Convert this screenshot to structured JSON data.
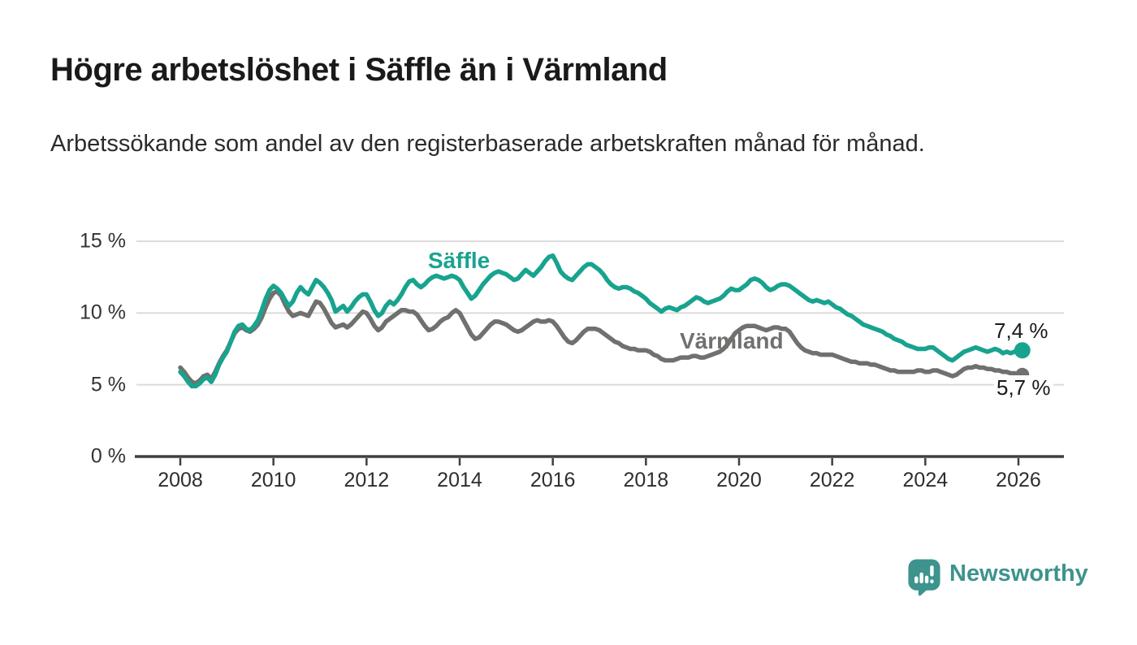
{
  "header": {
    "title": "Högre arbetslöshet i Säffle än i Värmland",
    "subtitle": "Arbetssökande som andel av den registerbaserade arbetskraften månad för månad."
  },
  "chart_data": {
    "type": "line",
    "title": "Högre arbetslöshet i Säffle än i Värmland",
    "subtitle": "Arbetssökande som andel av den registerbaserade arbetskraften månad för månad.",
    "x_unit": "month",
    "x_start": "2008-01",
    "x_end": "2026-02",
    "xlim": [
      2007,
      2027
    ],
    "ylim": [
      0,
      15.5
    ],
    "grid": "horizontal",
    "legend_position": "inline-labels",
    "x_ticks": [
      "2008",
      "2010",
      "2012",
      "2014",
      "2016",
      "2018",
      "2020",
      "2022",
      "2024",
      "2026"
    ],
    "y_ticks": [
      {
        "value": 0,
        "label": "0 %"
      },
      {
        "value": 5,
        "label": "5 %"
      },
      {
        "value": 10,
        "label": "10 %"
      },
      {
        "value": 15,
        "label": "15 %"
      }
    ],
    "series": [
      {
        "name": "Värmland",
        "color": "#70706F",
        "end_label": "5,7 %",
        "end_value": 5.7,
        "values": [
          6.2,
          5.9,
          5.5,
          5.2,
          5.1,
          5.3,
          5.6,
          5.7,
          5.4,
          5.9,
          6.5,
          7.0,
          7.4,
          8.0,
          8.6,
          8.9,
          9.0,
          8.8,
          8.7,
          8.9,
          9.2,
          9.7,
          10.4,
          11.0,
          11.4,
          11.5,
          11.2,
          10.6,
          10.1,
          9.8,
          9.9,
          10.0,
          9.9,
          9.8,
          10.3,
          10.8,
          10.7,
          10.3,
          9.8,
          9.3,
          9.0,
          9.1,
          9.2,
          9.0,
          9.2,
          9.5,
          9.8,
          10.1,
          10.0,
          9.6,
          9.1,
          8.8,
          9.0,
          9.4,
          9.6,
          9.8,
          10.0,
          10.2,
          10.2,
          10.1,
          10.1,
          9.9,
          9.5,
          9.1,
          8.8,
          8.9,
          9.1,
          9.4,
          9.6,
          9.7,
          10.0,
          10.2,
          10.0,
          9.5,
          9.0,
          8.5,
          8.2,
          8.3,
          8.6,
          8.9,
          9.2,
          9.4,
          9.4,
          9.3,
          9.2,
          9.0,
          8.8,
          8.7,
          8.8,
          9.0,
          9.2,
          9.4,
          9.5,
          9.4,
          9.4,
          9.5,
          9.4,
          9.1,
          8.7,
          8.3,
          8.0,
          7.9,
          8.1,
          8.4,
          8.7,
          8.9,
          8.9,
          8.9,
          8.8,
          8.6,
          8.4,
          8.2,
          8.0,
          7.9,
          7.7,
          7.6,
          7.5,
          7.5,
          7.4,
          7.4,
          7.4,
          7.3,
          7.1,
          7.0,
          6.8,
          6.7,
          6.7,
          6.7,
          6.8,
          6.9,
          6.9,
          6.9,
          7.0,
          7.0,
          6.9,
          6.9,
          7.0,
          7.1,
          7.2,
          7.3,
          7.5,
          7.8,
          8.2,
          8.6,
          8.8,
          9.0,
          9.1,
          9.1,
          9.1,
          9.0,
          8.9,
          8.8,
          8.9,
          9.0,
          9.0,
          8.9,
          8.9,
          8.7,
          8.3,
          7.9,
          7.6,
          7.4,
          7.3,
          7.2,
          7.2,
          7.1,
          7.1,
          7.1,
          7.1,
          7.0,
          6.9,
          6.8,
          6.7,
          6.6,
          6.6,
          6.5,
          6.5,
          6.5,
          6.4,
          6.4,
          6.3,
          6.2,
          6.1,
          6.0,
          6.0,
          5.9,
          5.9,
          5.9,
          5.9,
          5.9,
          6.0,
          6.0,
          5.9,
          5.9,
          6.0,
          6.0,
          5.9,
          5.8,
          5.7,
          5.6,
          5.7,
          5.9,
          6.1,
          6.2,
          6.2,
          6.3,
          6.2,
          6.2,
          6.1,
          6.1,
          6.0,
          6.0,
          5.9,
          5.9,
          5.8,
          5.8,
          5.7,
          5.7
        ]
      },
      {
        "name": "Säffle",
        "color": "#18A38F",
        "end_label": "7,4 %",
        "end_value": 7.4,
        "values": [
          5.9,
          5.6,
          5.2,
          4.9,
          4.9,
          5.1,
          5.4,
          5.5,
          5.2,
          5.7,
          6.4,
          6.9,
          7.3,
          8.0,
          8.7,
          9.1,
          9.2,
          8.9,
          8.8,
          9.1,
          9.5,
          10.2,
          11.0,
          11.6,
          11.9,
          11.7,
          11.4,
          10.9,
          10.5,
          10.8,
          11.4,
          11.8,
          11.5,
          11.3,
          11.8,
          12.3,
          12.1,
          11.8,
          11.4,
          10.9,
          10.1,
          10.3,
          10.5,
          10.1,
          10.4,
          10.8,
          11.1,
          11.3,
          11.3,
          10.8,
          10.2,
          9.8,
          10.0,
          10.5,
          10.8,
          10.6,
          10.9,
          11.3,
          11.8,
          12.2,
          12.3,
          12.0,
          11.8,
          12.0,
          12.3,
          12.5,
          12.6,
          12.5,
          12.4,
          12.5,
          12.6,
          12.5,
          12.3,
          11.8,
          11.4,
          11.0,
          11.2,
          11.6,
          12.0,
          12.3,
          12.6,
          12.8,
          12.9,
          12.8,
          12.7,
          12.5,
          12.3,
          12.4,
          12.7,
          13.0,
          12.8,
          12.6,
          12.9,
          13.2,
          13.6,
          13.9,
          14.0,
          13.5,
          12.9,
          12.6,
          12.4,
          12.3,
          12.6,
          12.9,
          13.2,
          13.4,
          13.4,
          13.2,
          13.0,
          12.7,
          12.3,
          12.0,
          11.8,
          11.7,
          11.8,
          11.8,
          11.7,
          11.5,
          11.4,
          11.2,
          11.0,
          10.7,
          10.5,
          10.3,
          10.1,
          10.3,
          10.4,
          10.3,
          10.2,
          10.4,
          10.5,
          10.7,
          10.9,
          11.1,
          11.0,
          10.8,
          10.7,
          10.8,
          10.9,
          11.0,
          11.2,
          11.5,
          11.7,
          11.6,
          11.6,
          11.8,
          12.0,
          12.3,
          12.4,
          12.3,
          12.1,
          11.8,
          11.6,
          11.7,
          11.9,
          12.0,
          12.0,
          11.9,
          11.7,
          11.5,
          11.3,
          11.1,
          10.9,
          10.8,
          10.9,
          10.8,
          10.7,
          10.8,
          10.6,
          10.4,
          10.3,
          10.1,
          9.9,
          9.8,
          9.6,
          9.4,
          9.2,
          9.1,
          9.0,
          8.9,
          8.8,
          8.7,
          8.5,
          8.4,
          8.2,
          8.1,
          8.0,
          7.8,
          7.7,
          7.6,
          7.5,
          7.5,
          7.5,
          7.6,
          7.6,
          7.4,
          7.2,
          7.0,
          6.8,
          6.7,
          6.9,
          7.1,
          7.3,
          7.4,
          7.5,
          7.6,
          7.5,
          7.4,
          7.3,
          7.4,
          7.5,
          7.4,
          7.2,
          7.3,
          7.2,
          7.3,
          7.4,
          7.4
        ]
      }
    ]
  },
  "styles": {
    "axis_color": "#3F3F3F",
    "grid_color": "#DBDBDB",
    "text_color": "#1A1A1A"
  },
  "branding": {
    "name": "Newsworthy",
    "color": "#3D938D",
    "icon": "newsworthy-speech-bubble-bar-chart"
  }
}
